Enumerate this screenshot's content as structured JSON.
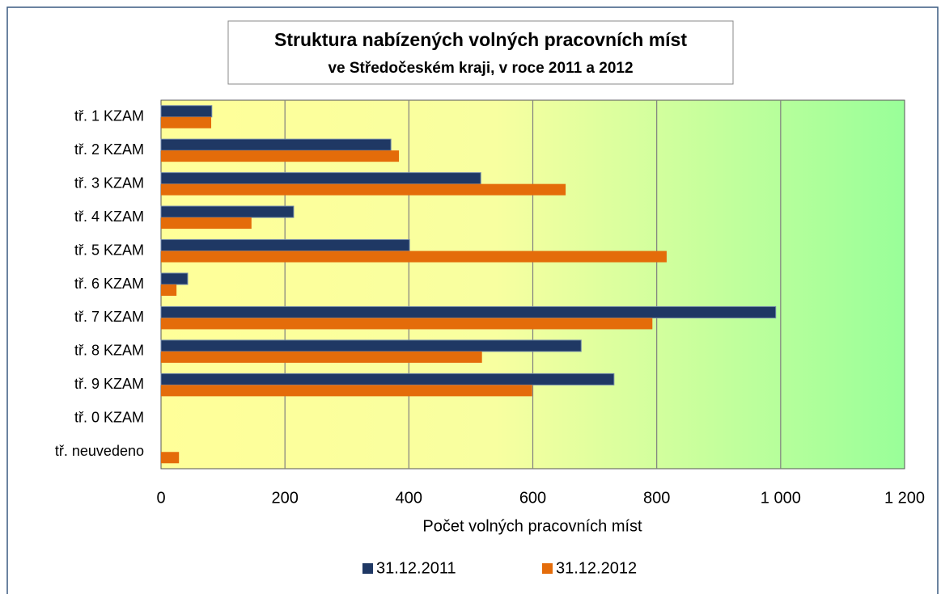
{
  "chart_data": {
    "type": "bar",
    "orientation": "horizontal",
    "title": "Struktura nabízených volných pracovních míst",
    "subtitle": "ve Středočeském kraji, v roce 2011 a 2012",
    "x_label": "Počet volných pracovních míst",
    "categories": [
      "tř. 1 KZAM",
      "tř. 2 KZAM",
      "tř. 3 KZAM",
      "tř. 4 KZAM",
      "tř. 5 KZAM",
      "tř. 6 KZAM",
      "tř. 7 KZAM",
      "tř. 8 KZAM",
      "tř. 9 KZAM",
      "tř. 0 KZAM",
      "tř. neuvedeno"
    ],
    "series": [
      {
        "name": "31.12.2011",
        "color": "#1f3864",
        "values": [
          82,
          371,
          516,
          214,
          401,
          43,
          992,
          678,
          731,
          0,
          0
        ]
      },
      {
        "name": "31.12.2012",
        "color": "#e46c0a",
        "values": [
          81,
          384,
          653,
          146,
          816,
          25,
          793,
          518,
          599,
          0,
          29
        ]
      }
    ],
    "xlim": [
      0,
      1200
    ],
    "xticks": [
      0,
      200,
      400,
      600,
      800,
      {
        "value": 1000,
        "label": "1 000"
      },
      {
        "value": 1200,
        "label": "1 200"
      }
    ],
    "grid": true,
    "legend": "bottom"
  }
}
